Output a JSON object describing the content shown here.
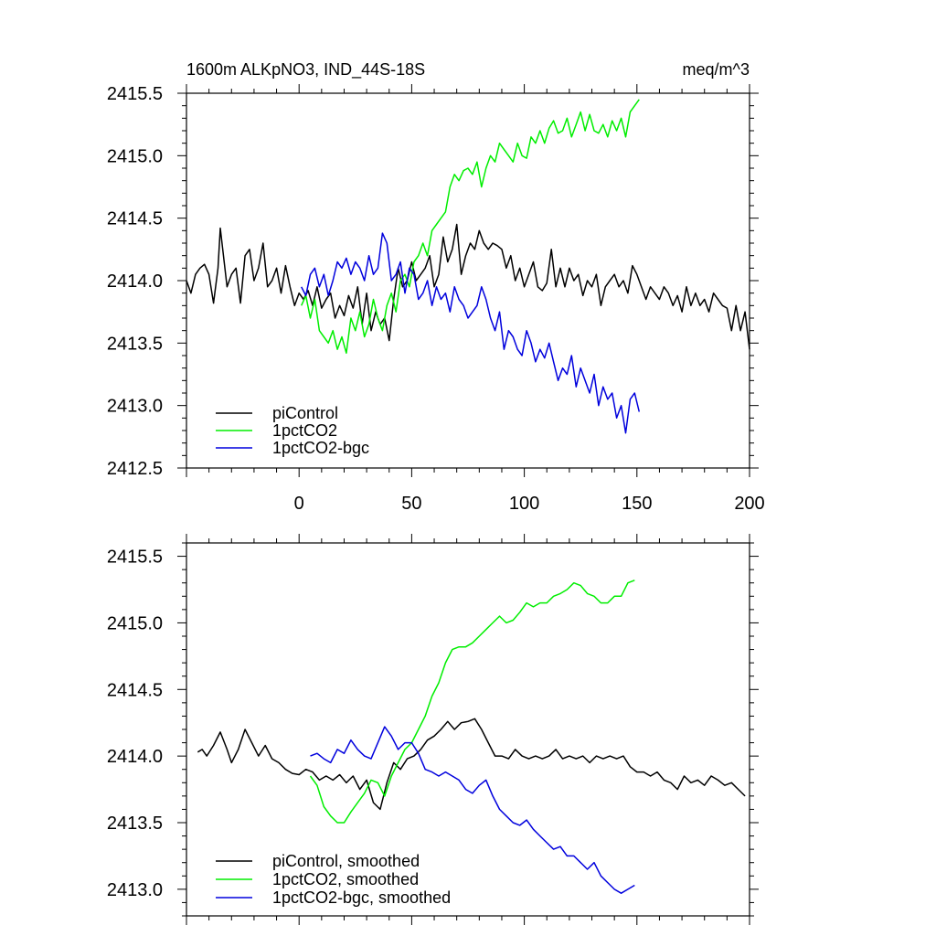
{
  "chart_data": [
    {
      "type": "line",
      "title": "1600m ALKpNO3, IND_44S-18S",
      "units": "meq/m^3",
      "xlim": [
        -50,
        200
      ],
      "ylim": [
        2412.5,
        2415.5
      ],
      "x_ticks": [
        0,
        50,
        100,
        150,
        200
      ],
      "y_ticks": [
        2412.5,
        2413.0,
        2413.5,
        2414.0,
        2414.5,
        2415.0,
        2415.5
      ],
      "y_tick_labels": [
        "2412.5",
        "2413.0",
        "2413.5",
        "2414.0",
        "2414.5",
        "2415.0",
        "2415.5"
      ],
      "x_tick_labels": [
        "0",
        "50",
        "100",
        "150",
        "200"
      ],
      "legend_position": "bottom-left",
      "series": [
        {
          "name": "piControl",
          "color": "#000000",
          "x": [
            -50,
            -48,
            -46,
            -44,
            -42,
            -40,
            -38,
            -36,
            -35,
            -32,
            -30,
            -28,
            -26,
            -24,
            -22,
            -20,
            -18,
            -16,
            -14,
            -12,
            -10,
            -8,
            -6,
            -4,
            -2,
            0,
            2,
            4,
            6,
            8,
            10,
            12,
            14,
            16,
            18,
            20,
            22,
            24,
            26,
            28,
            30,
            32,
            34,
            36,
            38,
            40,
            42,
            44,
            46,
            48,
            50,
            52,
            54,
            56,
            58,
            60,
            62,
            64,
            66,
            68,
            70,
            72,
            74,
            76,
            78,
            80,
            82,
            84,
            86,
            88,
            90,
            92,
            94,
            96,
            98,
            100,
            102,
            104,
            106,
            108,
            110,
            112,
            114,
            116,
            118,
            120,
            122,
            124,
            126,
            128,
            130,
            132,
            134,
            136,
            138,
            140,
            142,
            144,
            146,
            148,
            150,
            152,
            154,
            156,
            158,
            160,
            162,
            164,
            166,
            168,
            170,
            172,
            174,
            176,
            178,
            180,
            182,
            184,
            186,
            188,
            190,
            192,
            194,
            196,
            198,
            200
          ],
          "y": [
            2414.0,
            2413.9,
            2414.05,
            2414.1,
            2414.13,
            2414.05,
            2413.82,
            2414.1,
            2414.42,
            2413.95,
            2414.05,
            2414.1,
            2413.82,
            2414.2,
            2414.25,
            2414.0,
            2414.1,
            2414.3,
            2413.95,
            2414.0,
            2414.1,
            2413.9,
            2414.12,
            2413.95,
            2413.8,
            2413.9,
            2413.85,
            2413.92,
            2413.8,
            2413.95,
            2413.78,
            2413.85,
            2413.9,
            2413.7,
            2413.8,
            2413.72,
            2413.88,
            2413.78,
            2413.95,
            2413.65,
            2413.9,
            2413.6,
            2413.75,
            2413.65,
            2413.7,
            2413.52,
            2413.85,
            2414.1,
            2413.95,
            2414.0,
            2414.15,
            2414.0,
            2414.05,
            2414.1,
            2414.2,
            2413.95,
            2414.05,
            2414.35,
            2414.15,
            2414.25,
            2414.45,
            2414.05,
            2414.2,
            2414.3,
            2414.25,
            2414.4,
            2414.3,
            2414.25,
            2414.3,
            2414.28,
            2414.25,
            2414.1,
            2414.2,
            2414.0,
            2414.1,
            2413.95,
            2414.05,
            2414.15,
            2413.95,
            2413.92,
            2413.98,
            2414.25,
            2413.95,
            2414.1,
            2413.95,
            2414.1,
            2414.0,
            2414.05,
            2413.88,
            2414.0,
            2413.95,
            2414.05,
            2413.8,
            2413.95,
            2414.0,
            2414.05,
            2413.95,
            2414.0,
            2413.9,
            2414.12,
            2414.05,
            2413.95,
            2413.85,
            2413.95,
            2413.9,
            2413.85,
            2413.95,
            2413.9,
            2413.8,
            2413.88,
            2413.75,
            2413.95,
            2413.8,
            2413.9,
            2413.8,
            2413.85,
            2413.75,
            2413.9,
            2413.85,
            2413.8,
            2413.78,
            2413.6,
            2413.8,
            2413.6,
            2413.75,
            2413.45
          ]
        },
        {
          "name": "1pctCO2",
          "color": "#00ee00",
          "x": [
            1,
            3,
            5,
            7,
            9,
            11,
            13,
            15,
            17,
            19,
            21,
            23,
            25,
            27,
            29,
            31,
            33,
            35,
            37,
            39,
            41,
            43,
            45,
            47,
            49,
            51,
            53,
            55,
            57,
            59,
            61,
            63,
            65,
            67,
            69,
            71,
            73,
            75,
            77,
            79,
            81,
            83,
            85,
            87,
            89,
            91,
            93,
            95,
            97,
            99,
            101,
            103,
            105,
            107,
            109,
            111,
            113,
            115,
            117,
            119,
            121,
            123,
            125,
            127,
            129,
            131,
            133,
            135,
            137,
            139,
            141,
            143,
            145,
            147,
            149,
            151
          ],
          "y": [
            2413.8,
            2413.88,
            2413.7,
            2413.85,
            2413.6,
            2413.55,
            2413.5,
            2413.6,
            2413.45,
            2413.55,
            2413.42,
            2413.7,
            2413.6,
            2413.75,
            2413.55,
            2413.65,
            2413.85,
            2413.7,
            2413.6,
            2413.8,
            2413.9,
            2413.75,
            2414.0,
            2414.05,
            2413.95,
            2414.15,
            2414.2,
            2414.3,
            2414.2,
            2414.4,
            2414.45,
            2414.5,
            2414.55,
            2414.75,
            2414.85,
            2414.8,
            2414.88,
            2414.9,
            2414.85,
            2414.95,
            2414.75,
            2414.9,
            2415.0,
            2414.95,
            2415.1,
            2415.05,
            2415.0,
            2414.95,
            2415.1,
            2415.0,
            2414.98,
            2415.15,
            2415.1,
            2415.2,
            2415.1,
            2415.22,
            2415.28,
            2415.18,
            2415.2,
            2415.3,
            2415.15,
            2415.25,
            2415.35,
            2415.2,
            2415.33,
            2415.2,
            2415.18,
            2415.25,
            2415.15,
            2415.28,
            2415.2,
            2415.3,
            2415.15,
            2415.35,
            2415.4,
            2415.45
          ]
        },
        {
          "name": "1pctCO2-bgc",
          "color": "#0000dd",
          "x": [
            1,
            3,
            5,
            7,
            9,
            11,
            13,
            15,
            17,
            19,
            21,
            23,
            25,
            27,
            29,
            31,
            33,
            35,
            37,
            39,
            41,
            43,
            45,
            47,
            49,
            51,
            53,
            55,
            57,
            59,
            61,
            63,
            65,
            67,
            69,
            71,
            73,
            75,
            77,
            79,
            81,
            83,
            85,
            87,
            89,
            91,
            93,
            95,
            97,
            99,
            101,
            103,
            105,
            107,
            109,
            111,
            113,
            115,
            117,
            119,
            121,
            123,
            125,
            127,
            129,
            131,
            133,
            135,
            137,
            139,
            141,
            143,
            145,
            147,
            149,
            151
          ],
          "y": [
            2413.95,
            2413.88,
            2414.05,
            2414.1,
            2413.95,
            2414.05,
            2413.88,
            2414.0,
            2414.15,
            2414.1,
            2414.18,
            2414.05,
            2414.15,
            2414.1,
            2414.0,
            2414.2,
            2414.05,
            2414.1,
            2414.38,
            2414.3,
            2414.0,
            2414.05,
            2414.15,
            2413.9,
            2414.1,
            2414.05,
            2413.85,
            2413.9,
            2414.0,
            2413.8,
            2413.95,
            2413.85,
            2413.9,
            2413.75,
            2413.95,
            2413.85,
            2413.8,
            2413.7,
            2413.75,
            2413.8,
            2413.95,
            2413.85,
            2413.7,
            2413.6,
            2413.75,
            2413.45,
            2413.6,
            2413.55,
            2413.45,
            2413.4,
            2413.6,
            2413.5,
            2413.35,
            2413.45,
            2413.38,
            2413.5,
            2413.35,
            2413.2,
            2413.3,
            2413.25,
            2413.4,
            2413.15,
            2413.3,
            2413.2,
            2413.1,
            2413.25,
            2413.0,
            2413.15,
            2413.05,
            2413.1,
            2412.9,
            2413.0,
            2412.78,
            2413.05,
            2413.1,
            2412.95
          ]
        }
      ]
    },
    {
      "type": "line",
      "xlim": [
        -50,
        200
      ],
      "ylim": [
        2412.8,
        2415.6
      ],
      "y_ticks": [
        2413.0,
        2413.5,
        2414.0,
        2414.5,
        2415.0,
        2415.5
      ],
      "y_tick_labels": [
        "2413.0",
        "2413.5",
        "2414.0",
        "2414.5",
        "2415.0",
        "2415.5"
      ],
      "legend_position": "bottom-left",
      "series": [
        {
          "name": "piControl, smoothed",
          "color": "#000000",
          "x": [
            -45,
            -43,
            -41,
            -38,
            -35,
            -32,
            -30,
            -27,
            -24,
            -21,
            -18,
            -15,
            -12,
            -9,
            -6,
            -3,
            0,
            3,
            6,
            9,
            12,
            15,
            18,
            21,
            24,
            27,
            30,
            33,
            36,
            39,
            42,
            45,
            48,
            51,
            54,
            57,
            60,
            63,
            66,
            69,
            72,
            75,
            78,
            81,
            84,
            87,
            90,
            93,
            96,
            99,
            102,
            105,
            108,
            111,
            114,
            117,
            120,
            123,
            126,
            129,
            132,
            135,
            138,
            141,
            144,
            147,
            150,
            153,
            156,
            159,
            162,
            165,
            168,
            171,
            174,
            177,
            180,
            183,
            186,
            189,
            192,
            195,
            198
          ],
          "y": [
            2414.03,
            2414.05,
            2414.0,
            2414.08,
            2414.18,
            2414.05,
            2413.95,
            2414.05,
            2414.2,
            2414.1,
            2414.0,
            2414.08,
            2413.98,
            2413.95,
            2413.9,
            2413.87,
            2413.86,
            2413.9,
            2413.88,
            2413.82,
            2413.85,
            2413.82,
            2413.86,
            2413.8,
            2413.85,
            2413.75,
            2413.82,
            2413.65,
            2413.6,
            2413.8,
            2413.95,
            2413.9,
            2413.98,
            2414.0,
            2414.05,
            2414.12,
            2414.15,
            2414.2,
            2414.26,
            2414.2,
            2414.25,
            2414.26,
            2414.28,
            2414.2,
            2414.1,
            2414.0,
            2414.0,
            2413.98,
            2414.05,
            2414.0,
            2413.98,
            2414.0,
            2413.98,
            2414.0,
            2414.05,
            2413.98,
            2414.0,
            2413.98,
            2414.0,
            2413.95,
            2414.0,
            2413.98,
            2414.0,
            2413.98,
            2414.0,
            2413.92,
            2413.88,
            2413.88,
            2413.85,
            2413.88,
            2413.82,
            2413.8,
            2413.75,
            2413.85,
            2413.8,
            2413.82,
            2413.78,
            2413.85,
            2413.82,
            2413.78,
            2413.8,
            2413.75,
            2413.7
          ]
        },
        {
          "name": "1pctCO2, smoothed",
          "color": "#00ee00",
          "x": [
            5,
            8,
            11,
            14,
            17,
            20,
            23,
            26,
            29,
            32,
            35,
            38,
            41,
            44,
            47,
            50,
            53,
            56,
            59,
            62,
            65,
            68,
            71,
            74,
            77,
            80,
            83,
            86,
            89,
            92,
            95,
            98,
            101,
            104,
            107,
            110,
            113,
            116,
            119,
            122,
            125,
            128,
            131,
            134,
            137,
            140,
            143,
            146,
            149
          ],
          "y": [
            2413.85,
            2413.78,
            2413.62,
            2413.55,
            2413.5,
            2413.5,
            2413.58,
            2413.65,
            2413.72,
            2413.82,
            2413.8,
            2413.7,
            2413.85,
            2413.95,
            2414.05,
            2414.1,
            2414.2,
            2414.3,
            2414.45,
            2414.55,
            2414.7,
            2414.8,
            2414.82,
            2414.82,
            2414.85,
            2414.9,
            2414.95,
            2415.0,
            2415.05,
            2415.0,
            2415.02,
            2415.08,
            2415.15,
            2415.12,
            2415.15,
            2415.15,
            2415.2,
            2415.22,
            2415.25,
            2415.3,
            2415.28,
            2415.22,
            2415.2,
            2415.15,
            2415.15,
            2415.2,
            2415.2,
            2415.3,
            2415.32
          ]
        },
        {
          "name": "1pctCO2-bgc, smoothed",
          "color": "#0000dd",
          "x": [
            5,
            8,
            11,
            14,
            17,
            20,
            23,
            26,
            29,
            32,
            35,
            38,
            41,
            44,
            47,
            50,
            53,
            56,
            59,
            62,
            65,
            68,
            71,
            74,
            77,
            80,
            83,
            86,
            89,
            92,
            95,
            98,
            101,
            104,
            107,
            110,
            113,
            116,
            119,
            122,
            125,
            128,
            131,
            134,
            137,
            140,
            143,
            146,
            149
          ],
          "y": [
            2414.0,
            2414.02,
            2413.98,
            2413.95,
            2414.05,
            2414.02,
            2414.12,
            2414.05,
            2414.0,
            2413.98,
            2414.1,
            2414.22,
            2414.15,
            2414.05,
            2414.1,
            2414.1,
            2414.02,
            2413.9,
            2413.88,
            2413.85,
            2413.88,
            2413.85,
            2413.82,
            2413.75,
            2413.72,
            2413.78,
            2413.82,
            2413.7,
            2413.6,
            2413.55,
            2413.5,
            2413.48,
            2413.52,
            2413.45,
            2413.4,
            2413.35,
            2413.3,
            2413.32,
            2413.25,
            2413.25,
            2413.2,
            2413.15,
            2413.2,
            2413.1,
            2413.05,
            2413.0,
            2412.97,
            2413.0,
            2413.03
          ]
        }
      ]
    }
  ]
}
